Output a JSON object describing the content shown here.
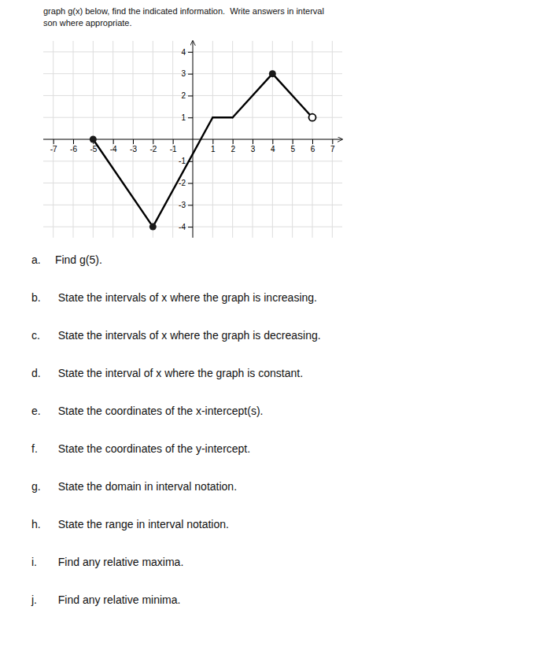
{
  "chart_data": {
    "type": "line",
    "title": "graph g(x) below, find the indicated information.  Write answers in interval",
    "subtitle": "son where appropriate.",
    "series": [
      {
        "type": "line",
        "color": "#000000",
        "x": [
          -5,
          -2
        ],
        "values": [
          0,
          -4
        ]
      },
      {
        "type": "line",
        "color": "#000000",
        "x": [
          -2,
          1
        ],
        "values": [
          -4,
          1
        ]
      },
      {
        "type": "line",
        "color": "#000000",
        "x": [
          1,
          2
        ],
        "values": [
          1,
          1
        ]
      },
      {
        "type": "line",
        "color": "#000000",
        "x": [
          2,
          4
        ],
        "values": [
          1,
          3
        ]
      },
      {
        "type": "line",
        "color": "#000000",
        "x": [
          4,
          6
        ],
        "values": [
          3,
          1
        ]
      },
      {
        "type": "scatter",
        "marker": "circle",
        "color": "#1a1a1a",
        "x": [
          -5,
          -2,
          4
        ],
        "values": [
          0,
          -4,
          3
        ]
      },
      {
        "type": "scatter",
        "marker": "circle-open",
        "color": "#000000",
        "x": [
          6
        ],
        "values": [
          1
        ]
      }
    ],
    "xlim": [
      -7.5,
      7.5
    ],
    "ylim": [
      -4.5,
      4.5
    ],
    "xticks": [
      -7,
      -6,
      -5,
      -4,
      -3,
      -2,
      -1,
      1,
      2,
      3,
      4,
      5,
      6,
      7
    ],
    "yticks": [
      -4,
      -3,
      -2,
      -1,
      1,
      2,
      3,
      4
    ],
    "grid": true,
    "annotations": [
      {
        "label": "a.",
        "text": " Find g(5)."
      },
      {
        "label": "b.",
        "text": "  State the intervals of x where the graph is increasing."
      },
      {
        "label": "c.",
        "text": "  State the intervals of x where the graph is decreasing."
      },
      {
        "label": "d.",
        "text": "  State the interval of x where the graph is constant."
      },
      {
        "label": "e.",
        "text": "  State the coordinates of the x-intercept(s)."
      },
      {
        "label": "f.",
        "text": "  State the coordinates of the y-intercept."
      },
      {
        "label": "g.",
        "text": "  State the domain in interval notation."
      },
      {
        "label": "h.",
        "text": "  State the range in interval notation."
      },
      {
        "label": "i.",
        "text": "  Find any relative maxima."
      },
      {
        "label": "j.",
        "text": "  Find any relative minima."
      }
    ]
  }
}
